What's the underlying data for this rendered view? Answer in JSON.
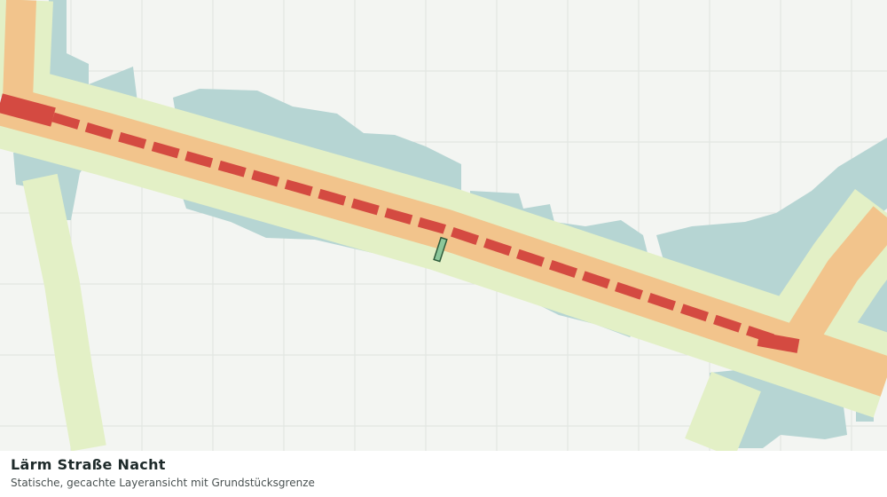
{
  "map": {
    "title": "Lärm Straße Nacht",
    "subtitle": "Statische, gecachte Layeransicht mit Grundstücksgrenze"
  }
}
